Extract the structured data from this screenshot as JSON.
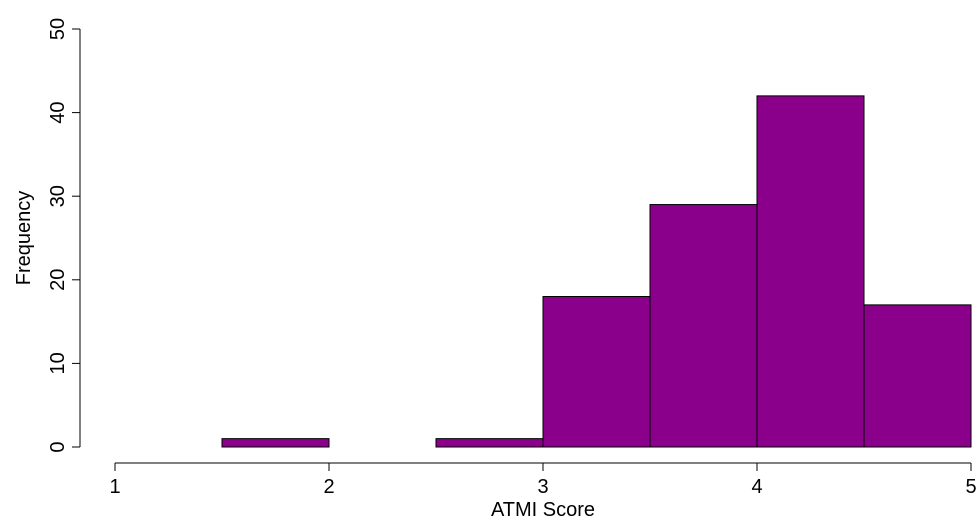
{
  "chart_data": {
    "type": "bar",
    "variant": "histogram",
    "bin_edges": [
      1.5,
      2.0,
      2.5,
      3.0,
      3.5,
      4.0,
      4.5,
      5.0
    ],
    "values": [
      1,
      0,
      1,
      18,
      29,
      42,
      17
    ],
    "title": "",
    "xlabel": "ATMI Score",
    "ylabel": "Frequency",
    "xlim": [
      1,
      5
    ],
    "ylim": [
      0,
      50
    ],
    "x_ticks": [
      1,
      2,
      3,
      4,
      5
    ],
    "y_ticks": [
      0,
      10,
      20,
      30,
      40,
      50
    ],
    "bar_color": "#8B008B",
    "grid": false,
    "legend": "none"
  }
}
